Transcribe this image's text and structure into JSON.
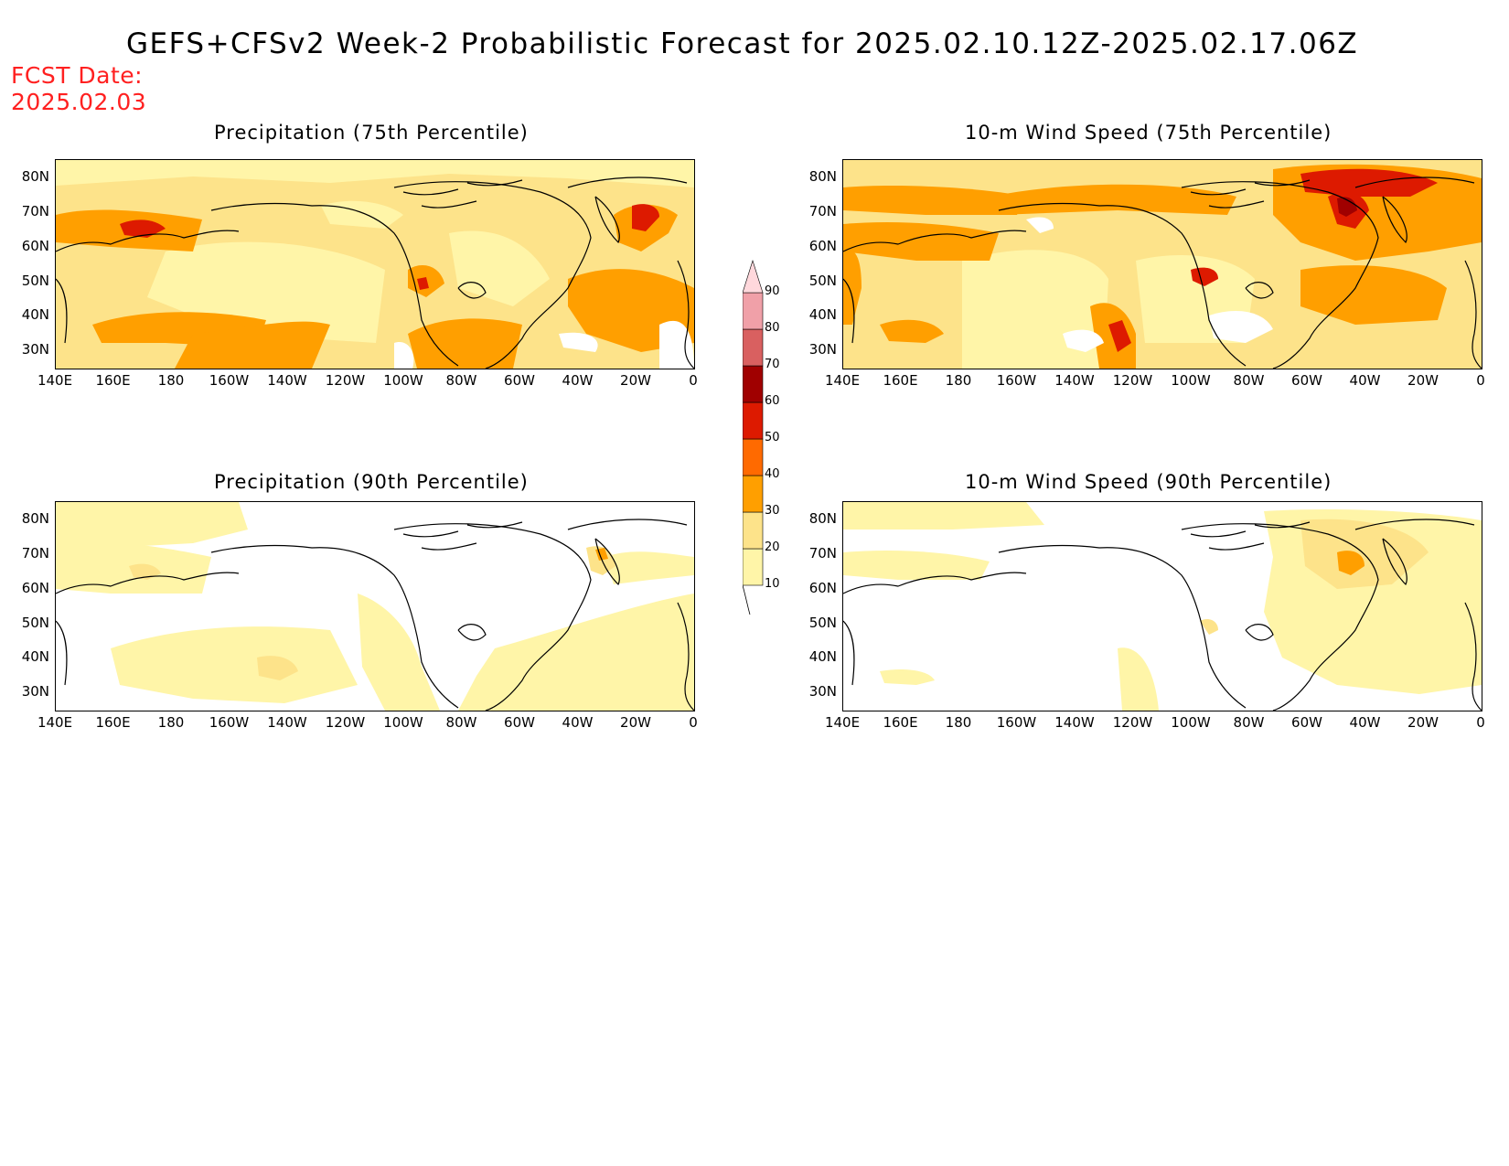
{
  "title": "GEFS+CFSv2 Week-2 Probabilistic Forecast for 2025.02.10.12Z-2025.02.17.06Z",
  "fcst_date_label": "FCST Date:",
  "fcst_date_value": "2025.02.03",
  "panels": [
    {
      "title": "Precipitation (75th Percentile)"
    },
    {
      "title": "10-m Wind Speed (75th Percentile)"
    },
    {
      "title": "Precipitation (90th Percentile)"
    },
    {
      "title": "10-m Wind Speed (90th Percentile)"
    }
  ],
  "lat_labels": [
    "80N",
    "70N",
    "60N",
    "50N",
    "40N",
    "30N"
  ],
  "lon_labels": [
    "140E",
    "160E",
    "180",
    "160W",
    "140W",
    "120W",
    "100W",
    "80W",
    "60W",
    "40W",
    "20W",
    "0"
  ],
  "colorbar": {
    "levels": [
      10,
      20,
      30,
      40,
      50,
      60,
      70,
      80,
      90
    ],
    "labels": [
      "10",
      "20",
      "30",
      "40",
      "50",
      "60",
      "70",
      "80",
      "90"
    ],
    "colors": [
      "#fff5a8",
      "#fde38a",
      "#ff9f00",
      "#ff6a00",
      "#dd1a00",
      "#a00000",
      "#d96060",
      "#f0a0a8",
      "#ffd8dc"
    ]
  }
}
